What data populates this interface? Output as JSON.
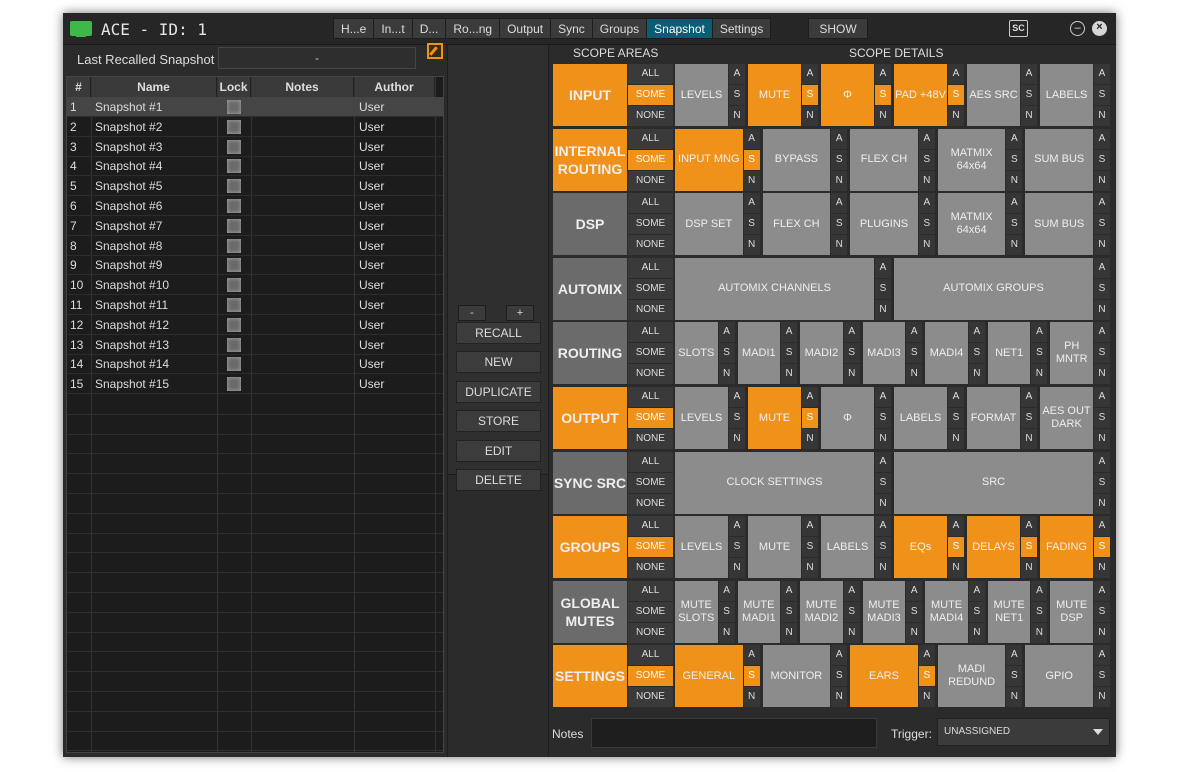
{
  "window": {
    "title": "ACE - ID: 1"
  },
  "tabs": [
    {
      "label": "H...e"
    },
    {
      "label": "In...t"
    },
    {
      "label": "D..."
    },
    {
      "label": "Ro...ng"
    },
    {
      "label": "Output"
    },
    {
      "label": "Sync"
    },
    {
      "label": "Groups"
    },
    {
      "label": "Snapshot",
      "active": true
    },
    {
      "label": "Settings"
    }
  ],
  "show_label": "SHOW",
  "sc_label": "SC",
  "last_recalled": {
    "label": "Last Recalled Snapshot",
    "value": "-"
  },
  "table": {
    "columns": [
      "#",
      "Name",
      "Lock",
      "Notes",
      "Author"
    ],
    "rows": [
      {
        "num": "1",
        "name": "Snapshot #1",
        "author": "User"
      },
      {
        "num": "2",
        "name": "Snapshot #2",
        "author": "User"
      },
      {
        "num": "3",
        "name": "Snapshot #3",
        "author": "User"
      },
      {
        "num": "4",
        "name": "Snapshot #4",
        "author": "User"
      },
      {
        "num": "5",
        "name": "Snapshot #5",
        "author": "User"
      },
      {
        "num": "6",
        "name": "Snapshot #6",
        "author": "User"
      },
      {
        "num": "7",
        "name": "Snapshot #7",
        "author": "User"
      },
      {
        "num": "8",
        "name": "Snapshot #8",
        "author": "User"
      },
      {
        "num": "9",
        "name": "Snapshot #9",
        "author": "User"
      },
      {
        "num": "10",
        "name": "Snapshot #10",
        "author": "User"
      },
      {
        "num": "11",
        "name": "Snapshot #11",
        "author": "User"
      },
      {
        "num": "12",
        "name": "Snapshot #12",
        "author": "User"
      },
      {
        "num": "13",
        "name": "Snapshot #13",
        "author": "User"
      },
      {
        "num": "14",
        "name": "Snapshot #14",
        "author": "User"
      },
      {
        "num": "15",
        "name": "Snapshot #15",
        "author": "User"
      }
    ]
  },
  "mid": {
    "minus": "-",
    "plus": "+",
    "buttons": [
      "RECALL",
      "NEW",
      "DUPLICATE",
      "STORE",
      "EDIT",
      "DELETE"
    ]
  },
  "scope": {
    "areas_header": "SCOPE AREAS",
    "details_header": "SCOPE DETAILS",
    "selector_labels": [
      "ALL",
      "SOME",
      "NONE"
    ],
    "mini_labels": [
      "A",
      "S",
      "N"
    ],
    "rows": [
      {
        "name": "INPUT",
        "active": true,
        "mode": "SOME",
        "cells": [
          {
            "label": "LEVELS",
            "on": false
          },
          {
            "label": "MUTE",
            "on": true,
            "sel": "S"
          },
          {
            "label": "Φ",
            "on": true,
            "sel": "S"
          },
          {
            "label": "PAD +48V",
            "on": true,
            "sel": "S"
          },
          {
            "label": "AES SRC",
            "on": false
          },
          {
            "label": "LABELS",
            "on": false
          }
        ]
      },
      {
        "name": "INTERNAL ROUTING",
        "active": true,
        "mode": "SOME",
        "cells": [
          {
            "label": "INPUT MNG",
            "on": true,
            "sel": "S"
          },
          {
            "label": "BYPASS",
            "on": false
          },
          {
            "label": "FLEX CH",
            "on": false
          },
          {
            "label": "MATMIX 64x64",
            "on": false
          },
          {
            "label": "SUM BUS",
            "on": false
          }
        ]
      },
      {
        "name": "DSP",
        "active": false,
        "mode": "",
        "cells": [
          {
            "label": "DSP SET",
            "on": false
          },
          {
            "label": "FLEX CH",
            "on": false
          },
          {
            "label": "PLUGINS",
            "on": false
          },
          {
            "label": "MATMIX 64x64",
            "on": false
          },
          {
            "label": "SUM BUS",
            "on": false
          }
        ]
      },
      {
        "name": "AUTOMIX",
        "active": false,
        "mode": "",
        "cells": [
          {
            "label": "AUTOMIX CHANNELS",
            "on": false
          },
          {
            "label": "AUTOMIX GROUPS",
            "on": false
          }
        ]
      },
      {
        "name": "ROUTING",
        "active": false,
        "mode": "",
        "cells": [
          {
            "label": "SLOTS",
            "on": false
          },
          {
            "label": "MADI1",
            "on": false
          },
          {
            "label": "MADI2",
            "on": false
          },
          {
            "label": "MADI3",
            "on": false
          },
          {
            "label": "MADI4",
            "on": false
          },
          {
            "label": "NET1",
            "on": false
          },
          {
            "label": "PH MNTR",
            "on": false
          }
        ]
      },
      {
        "name": "OUTPUT",
        "active": true,
        "mode": "SOME",
        "cells": [
          {
            "label": "LEVELS",
            "on": false
          },
          {
            "label": "MUTE",
            "on": true,
            "sel": "S"
          },
          {
            "label": "Φ",
            "on": false
          },
          {
            "label": "LABELS",
            "on": false
          },
          {
            "label": "FORMAT",
            "on": false
          },
          {
            "label": "AES OUT DARK",
            "on": false
          }
        ]
      },
      {
        "name": "SYNC SRC",
        "active": false,
        "mode": "",
        "cells": [
          {
            "label": "CLOCK SETTINGS",
            "on": false
          },
          {
            "label": "SRC",
            "on": false
          }
        ]
      },
      {
        "name": "GROUPS",
        "active": true,
        "mode": "SOME",
        "cells": [
          {
            "label": "LEVELS",
            "on": false
          },
          {
            "label": "MUTE",
            "on": false
          },
          {
            "label": "LABELS",
            "on": false
          },
          {
            "label": "EQs",
            "on": true,
            "sel": "S"
          },
          {
            "label": "DELAYS",
            "on": true,
            "sel": "S"
          },
          {
            "label": "FADING",
            "on": true,
            "sel": "S"
          }
        ]
      },
      {
        "name": "GLOBAL MUTES",
        "active": false,
        "mode": "",
        "cells": [
          {
            "label": "MUTE SLOTS",
            "on": false
          },
          {
            "label": "MUTE MADI1",
            "on": false
          },
          {
            "label": "MUTE MADI2",
            "on": false
          },
          {
            "label": "MUTE MADI3",
            "on": false
          },
          {
            "label": "MUTE MADI4",
            "on": false
          },
          {
            "label": "MUTE NET1",
            "on": false
          },
          {
            "label": "MUTE DSP",
            "on": false
          }
        ]
      },
      {
        "name": "SETTINGS",
        "active": true,
        "mode": "SOME",
        "cells": [
          {
            "label": "GENERAL",
            "on": true,
            "sel": "S"
          },
          {
            "label": "MONITOR",
            "on": false
          },
          {
            "label": "EARS",
            "on": true,
            "sel": "S"
          },
          {
            "label": "MADI REDUND",
            "on": false
          },
          {
            "label": "GPIO",
            "on": false
          }
        ]
      }
    ]
  },
  "bottom": {
    "notes_label": "Notes",
    "trigger_label": "Trigger:",
    "trigger_value": "UNASSIGNED"
  },
  "colors": {
    "accent": "#f0921a",
    "tab_active": "#0a5d73",
    "area_gray": "#6b6b6b",
    "cell_gray": "#8c8c8c"
  }
}
